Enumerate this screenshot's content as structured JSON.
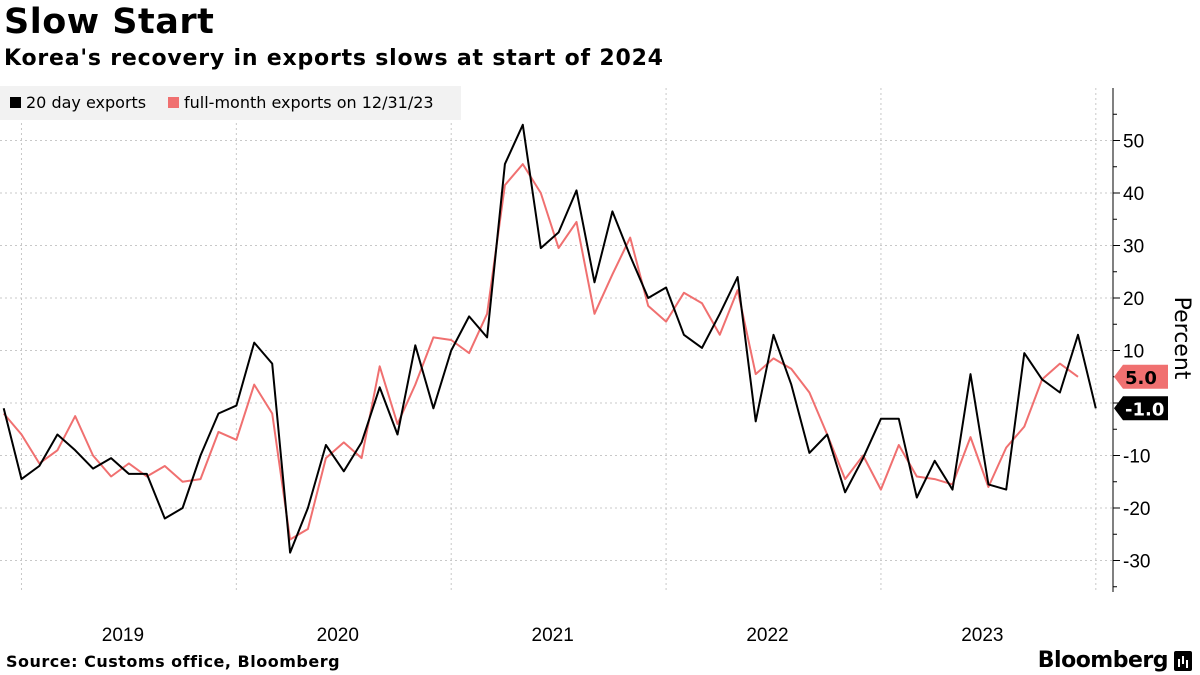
{
  "title": "Slow Start",
  "subtitle": "Korea's recovery in exports slows at start of 2024",
  "footer": "Source: Customs office, Bloomberg",
  "brand": "Bloomberg",
  "colors": {
    "series_black": "#000000",
    "series_red": "#f07070",
    "grid": "#c8c8c8",
    "legend_bg": "#f2f2f2"
  },
  "chart_data": {
    "type": "line",
    "title": "Slow Start",
    "subtitle": "Korea's recovery in exports slows at start of 2024",
    "ylabel": "Percent",
    "xlabel": "",
    "ylim": [
      -36,
      60
    ],
    "yticks": [
      50,
      40,
      30,
      20,
      10,
      0,
      -10,
      -20,
      -30
    ],
    "ytick_labels": [
      "50",
      "40",
      "30",
      "20",
      "10",
      "0",
      "-10",
      "-20",
      "-30"
    ],
    "xlim": [
      2018.9,
      2024.08
    ],
    "xticks": [
      2019,
      2020,
      2021,
      2022,
      2023
    ],
    "xtick_labels": [
      "2019",
      "2020",
      "2021",
      "2022",
      "2023"
    ],
    "grid": true,
    "legend_position": "top-left",
    "series": [
      {
        "name": "20 day exports",
        "color": "#000000",
        "x": [
          2018.917,
          2019.0,
          2019.083,
          2019.167,
          2019.25,
          2019.333,
          2019.417,
          2019.5,
          2019.583,
          2019.667,
          2019.75,
          2019.833,
          2019.917,
          2020.0,
          2020.083,
          2020.167,
          2020.25,
          2020.333,
          2020.417,
          2020.5,
          2020.583,
          2020.667,
          2020.75,
          2020.833,
          2020.917,
          2021.0,
          2021.083,
          2021.167,
          2021.25,
          2021.333,
          2021.417,
          2021.5,
          2021.583,
          2021.667,
          2021.75,
          2021.833,
          2021.917,
          2022.0,
          2022.083,
          2022.167,
          2022.25,
          2022.333,
          2022.417,
          2022.5,
          2022.583,
          2022.667,
          2022.75,
          2022.833,
          2022.917,
          2023.0,
          2023.083,
          2023.167,
          2023.25,
          2023.333,
          2023.417,
          2023.5,
          2023.583,
          2023.667,
          2023.75,
          2023.833,
          2023.917,
          2024.0
        ],
        "values": [
          -1,
          -14.5,
          -12,
          -6,
          -9,
          -12.5,
          -10.5,
          -13.5,
          -13.5,
          -22,
          -20,
          -10,
          -2,
          -0.5,
          11.5,
          7.5,
          -28.5,
          -20,
          -8,
          -13,
          -7.5,
          3,
          -6,
          11,
          -1,
          10,
          16.5,
          12.5,
          45.5,
          53,
          29.5,
          32.5,
          40.5,
          23,
          36.5,
          28,
          20,
          22,
          13,
          10.5,
          17,
          24,
          -3.5,
          13,
          3.5,
          -9.5,
          -6,
          -17,
          -10.5,
          -3,
          -3,
          -18,
          -11,
          -16.5,
          5.5,
          -15.5,
          -16.5,
          9.5,
          4.5,
          2,
          13,
          -1.0
        ]
      },
      {
        "name": "full-month exports on 12/31/23",
        "color": "#f07070",
        "x": [
          2018.917,
          2019.0,
          2019.083,
          2019.167,
          2019.25,
          2019.333,
          2019.417,
          2019.5,
          2019.583,
          2019.667,
          2019.75,
          2019.833,
          2019.917,
          2020.0,
          2020.083,
          2020.167,
          2020.25,
          2020.333,
          2020.417,
          2020.5,
          2020.583,
          2020.667,
          2020.75,
          2020.833,
          2020.917,
          2021.0,
          2021.083,
          2021.167,
          2021.25,
          2021.333,
          2021.417,
          2021.5,
          2021.583,
          2021.667,
          2021.75,
          2021.833,
          2021.917,
          2022.0,
          2022.083,
          2022.167,
          2022.25,
          2022.333,
          2022.417,
          2022.5,
          2022.583,
          2022.667,
          2022.75,
          2022.833,
          2022.917,
          2023.0,
          2023.083,
          2023.167,
          2023.25,
          2023.333,
          2023.417,
          2023.5,
          2023.583,
          2023.667,
          2023.75,
          2023.833,
          2023.917
        ],
        "values": [
          -2,
          -6,
          -11.5,
          -9,
          -2.5,
          -10,
          -14,
          -11.5,
          -14,
          -12,
          -15,
          -14.5,
          -5.5,
          -7,
          3.5,
          -2,
          -26,
          -24,
          -10.5,
          -7.5,
          -10.5,
          7,
          -4,
          3.5,
          12.5,
          12,
          9.5,
          17,
          41.5,
          45.5,
          40,
          29.5,
          34.5,
          17,
          24.5,
          31.5,
          18.5,
          15.5,
          21,
          19,
          13,
          21.5,
          5.5,
          8.5,
          6.5,
          2,
          -6,
          -14.5,
          -10,
          -16.5,
          -8,
          -14,
          -14.5,
          -15.5,
          -6.5,
          -16,
          -8.5,
          -4.5,
          4.5,
          7.5,
          5.0
        ]
      }
    ],
    "end_labels": [
      {
        "series": "full-month exports on 12/31/23",
        "value": 5.0,
        "text": "5.0"
      },
      {
        "series": "20 day exports",
        "value": -1.0,
        "text": "-1.0"
      }
    ]
  }
}
